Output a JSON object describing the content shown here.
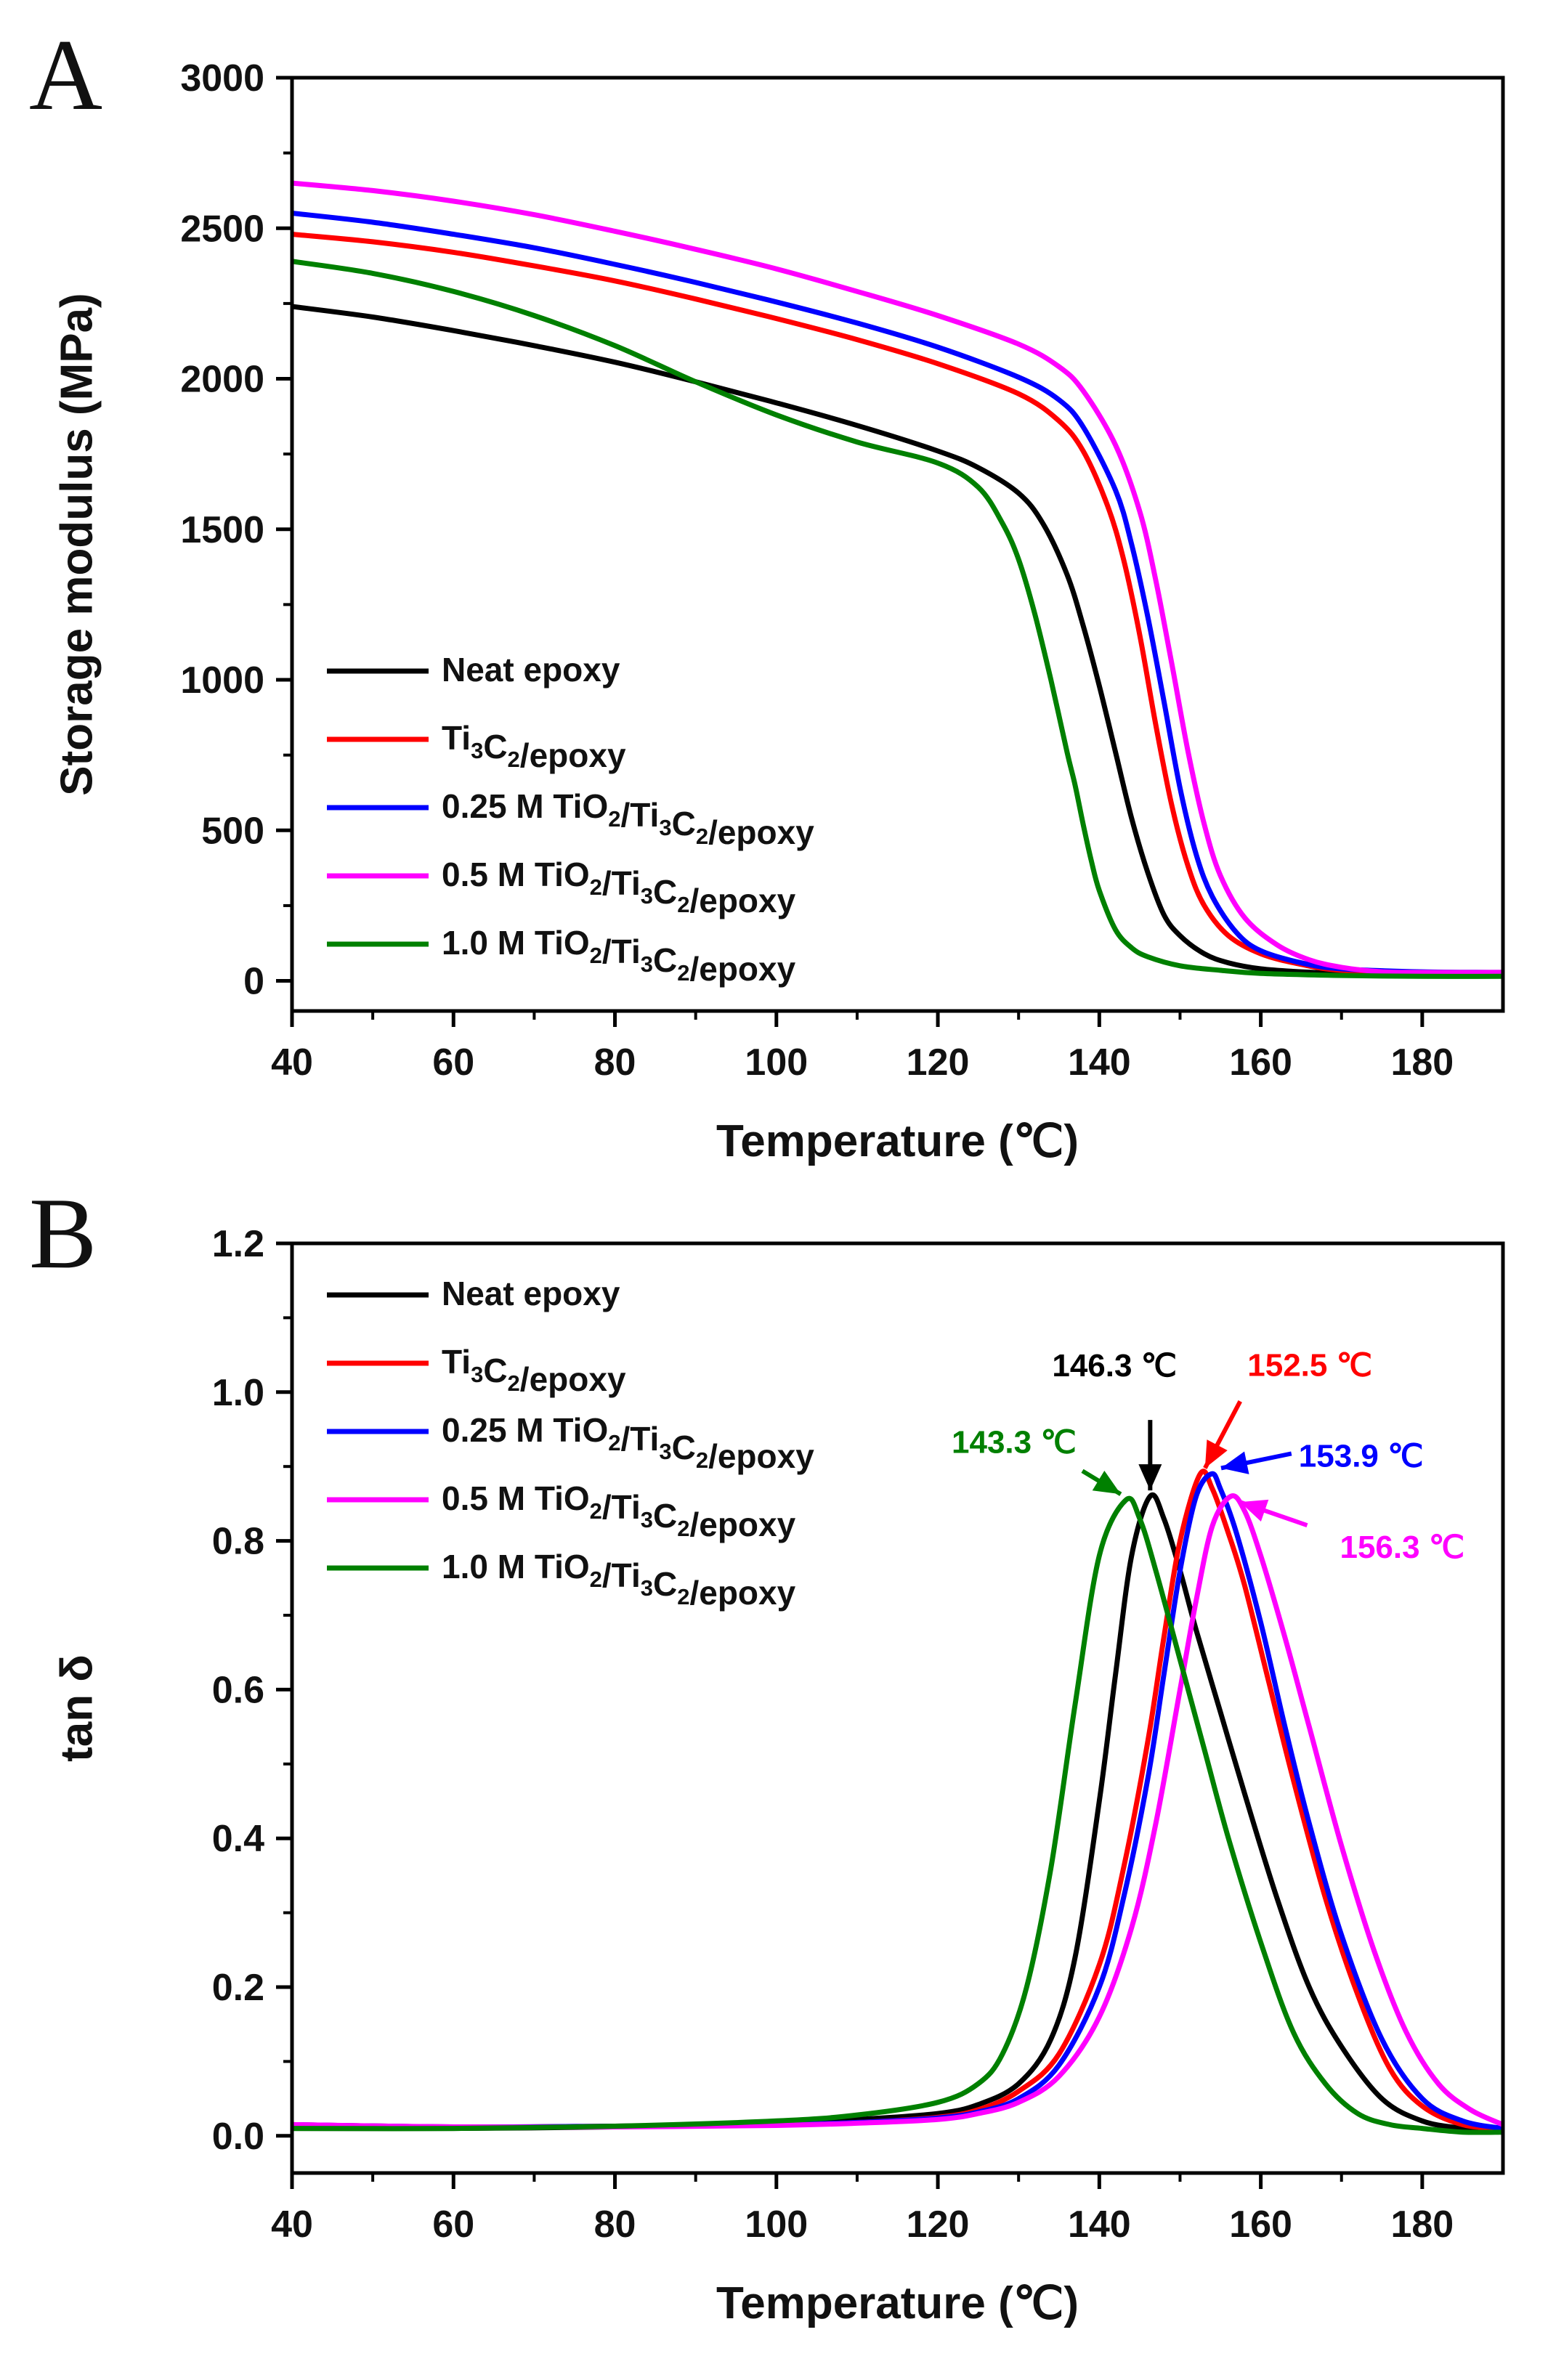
{
  "chart_data": [
    {
      "panel": "A",
      "type": "line",
      "xlabel": "Temperature (℃)",
      "ylabel": "Storage modulus (MPa)",
      "xlim": [
        40,
        190
      ],
      "ylim": [
        -100,
        3000
      ],
      "x_ticks": [
        40,
        60,
        80,
        100,
        120,
        140,
        160,
        180
      ],
      "y_ticks": [
        0,
        500,
        1000,
        1500,
        2000,
        2500,
        3000
      ],
      "legend": [
        {
          "name": "Neat epoxy",
          "color": "#000000"
        },
        {
          "name": "Ti3C2/epoxy",
          "color": "#ff0000"
        },
        {
          "name": "0.25 M TiO2/Ti3C2/epoxy",
          "color": "#0000ff"
        },
        {
          "name": "0.5 M TiO2/Ti3C2/epoxy",
          "color": "#ff00ff"
        },
        {
          "name": "1.0 M TiO2/Ti3C2/epoxy",
          "color": "#008000"
        }
      ],
      "series": [
        {
          "name": "Neat epoxy",
          "color": "#000000",
          "x": [
            40,
            50,
            60,
            70,
            80,
            90,
            100,
            110,
            120,
            125,
            130,
            133,
            136,
            138,
            140,
            142,
            144,
            146,
            148,
            150,
            153,
            156,
            160,
            165,
            170,
            180,
            190
          ],
          "y": [
            2240,
            2205,
            2160,
            2110,
            2055,
            1990,
            1920,
            1845,
            1760,
            1705,
            1620,
            1520,
            1350,
            1180,
            980,
            760,
            540,
            360,
            220,
            150,
            90,
            60,
            40,
            30,
            25,
            22,
            20
          ]
        },
        {
          "name": "Ti3C2/epoxy",
          "color": "#ff0000",
          "x": [
            40,
            50,
            60,
            70,
            80,
            90,
            100,
            110,
            120,
            130,
            135,
            138,
            141,
            143,
            145,
            147,
            149,
            151,
            153,
            156,
            160,
            165,
            170,
            180,
            190
          ],
          "y": [
            2480,
            2455,
            2420,
            2375,
            2325,
            2265,
            2200,
            2130,
            2050,
            1950,
            1860,
            1760,
            1580,
            1400,
            1150,
            850,
            580,
            380,
            250,
            150,
            90,
            55,
            35,
            25,
            22
          ]
        },
        {
          "name": "0.25 M TiO2/Ti3C2/epoxy",
          "color": "#0000ff",
          "x": [
            40,
            50,
            60,
            70,
            80,
            90,
            100,
            110,
            120,
            130,
            135,
            138,
            142,
            144,
            146,
            148,
            150,
            152,
            154,
            157,
            160,
            165,
            170,
            180,
            190
          ],
          "y": [
            2550,
            2520,
            2480,
            2435,
            2380,
            2320,
            2255,
            2185,
            2105,
            2005,
            1930,
            1840,
            1630,
            1450,
            1210,
            930,
            640,
            420,
            280,
            160,
            100,
            60,
            40,
            30,
            28
          ]
        },
        {
          "name": "0.5 M TiO2/Ti3C2/epoxy",
          "color": "#ff00ff",
          "x": [
            40,
            50,
            60,
            70,
            80,
            90,
            100,
            110,
            120,
            130,
            135,
            138,
            142,
            145,
            147,
            149,
            151,
            153,
            155,
            158,
            162,
            166,
            170,
            175,
            180,
            190
          ],
          "y": [
            2650,
            2625,
            2590,
            2545,
            2490,
            2430,
            2365,
            2290,
            2210,
            2115,
            2040,
            1960,
            1780,
            1560,
            1330,
            1050,
            760,
            520,
            350,
            210,
            120,
            70,
            45,
            30,
            28,
            28
          ]
        },
        {
          "name": "1.0 M TiO2/Ti3C2/epoxy",
          "color": "#008000",
          "x": [
            40,
            50,
            60,
            70,
            80,
            90,
            100,
            110,
            120,
            125,
            128,
            130,
            132,
            134,
            136,
            137,
            138,
            139,
            140,
            142,
            144,
            146,
            150,
            155,
            160,
            170,
            180,
            190
          ],
          "y": [
            2390,
            2350,
            2290,
            2210,
            2110,
            1990,
            1880,
            1790,
            1720,
            1640,
            1520,
            1400,
            1220,
            1000,
            760,
            650,
            520,
            400,
            300,
            170,
            110,
            80,
            50,
            35,
            25,
            18,
            15,
            15
          ]
        }
      ]
    },
    {
      "panel": "B",
      "type": "line",
      "xlabel": "Temperature (℃)",
      "ylabel": "tan δ",
      "xlim": [
        40,
        190
      ],
      "ylim": [
        -0.05,
        1.2
      ],
      "x_ticks": [
        40,
        60,
        80,
        100,
        120,
        140,
        160,
        180
      ],
      "y_ticks": [
        "0.0",
        "0.2",
        "0.4",
        "0.6",
        "0.8",
        "1.0",
        "1.2"
      ],
      "legend": [
        {
          "name": "Neat epoxy",
          "color": "#000000"
        },
        {
          "name": "Ti3C2/epoxy",
          "color": "#ff0000"
        },
        {
          "name": "0.25 M TiO2/Ti3C2/epoxy",
          "color": "#0000ff"
        },
        {
          "name": "0.5 M TiO2/Ti3C2/epoxy",
          "color": "#ff00ff"
        },
        {
          "name": "1.0 M TiO2/Ti3C2/epoxy",
          "color": "#008000"
        }
      ],
      "series": [
        {
          "name": "Neat epoxy",
          "color": "#000000",
          "x": [
            40,
            60,
            80,
            100,
            110,
            120,
            125,
            130,
            134,
            137,
            140,
            142,
            144,
            146.3,
            148,
            150,
            152,
            155,
            158,
            162,
            166,
            170,
            175,
            180,
            185,
            190
          ],
          "y": [
            0.01,
            0.01,
            0.012,
            0.017,
            0.022,
            0.03,
            0.042,
            0.07,
            0.13,
            0.24,
            0.45,
            0.62,
            0.78,
            0.86,
            0.83,
            0.76,
            0.68,
            0.57,
            0.46,
            0.32,
            0.2,
            0.12,
            0.05,
            0.02,
            0.01,
            0.005
          ]
        },
        {
          "name": "Ti3C2/epoxy",
          "color": "#ff0000",
          "x": [
            40,
            60,
            80,
            100,
            110,
            120,
            125,
            130,
            135,
            140,
            143,
            146,
            148,
            150,
            152.5,
            154,
            156,
            158,
            161,
            164,
            168,
            172,
            176,
            180,
            185,
            190
          ],
          "y": [
            0.015,
            0.012,
            0.013,
            0.015,
            0.018,
            0.025,
            0.035,
            0.06,
            0.11,
            0.23,
            0.36,
            0.53,
            0.67,
            0.8,
            0.89,
            0.87,
            0.81,
            0.74,
            0.61,
            0.48,
            0.32,
            0.19,
            0.09,
            0.04,
            0.015,
            0.01
          ]
        },
        {
          "name": "0.25 M TiO2/Ti3C2/epoxy",
          "color": "#0000ff",
          "x": [
            40,
            60,
            80,
            100,
            110,
            120,
            125,
            130,
            135,
            140,
            143,
            146,
            148,
            150,
            152,
            153.9,
            155,
            157,
            160,
            163,
            166,
            170,
            175,
            180,
            185,
            190
          ],
          "y": [
            0.015,
            0.012,
            0.013,
            0.015,
            0.018,
            0.024,
            0.032,
            0.05,
            0.095,
            0.2,
            0.32,
            0.48,
            0.62,
            0.76,
            0.86,
            0.89,
            0.87,
            0.81,
            0.69,
            0.55,
            0.42,
            0.27,
            0.13,
            0.05,
            0.02,
            0.01
          ]
        },
        {
          "name": "0.5 M TiO2/Ti3C2/epoxy",
          "color": "#ff00ff",
          "x": [
            40,
            60,
            80,
            100,
            110,
            120,
            125,
            130,
            135,
            140,
            144,
            147,
            150,
            152,
            154,
            156.3,
            158,
            160,
            163,
            166,
            170,
            174,
            178,
            182,
            186,
            190
          ],
          "y": [
            0.015,
            0.012,
            0.012,
            0.014,
            0.017,
            0.022,
            0.03,
            0.045,
            0.08,
            0.16,
            0.28,
            0.42,
            0.6,
            0.72,
            0.82,
            0.86,
            0.84,
            0.78,
            0.67,
            0.55,
            0.39,
            0.25,
            0.14,
            0.07,
            0.035,
            0.015
          ]
        },
        {
          "name": "1.0 M TiO2/Ti3C2/epoxy",
          "color": "#008000",
          "x": [
            40,
            60,
            80,
            100,
            110,
            120,
            125,
            128,
            131,
            134,
            137,
            140,
            143.3,
            145,
            147,
            150,
            153,
            156,
            160,
            164,
            168,
            172,
            176,
            180,
            185,
            190
          ],
          "y": [
            0.01,
            0.01,
            0.013,
            0.02,
            0.028,
            0.045,
            0.07,
            0.11,
            0.2,
            0.36,
            0.58,
            0.78,
            0.855,
            0.83,
            0.76,
            0.64,
            0.52,
            0.4,
            0.26,
            0.14,
            0.07,
            0.03,
            0.015,
            0.01,
            0.005,
            0.005
          ]
        }
      ],
      "annotations": [
        {
          "text": "146.3 ℃",
          "x": 146.3,
          "y": 0.86,
          "color": "#000000"
        },
        {
          "text": "152.5 ℃",
          "x": 152.5,
          "y": 0.89,
          "color": "#ff0000"
        },
        {
          "text": "153.9 ℃",
          "x": 153.9,
          "y": 0.89,
          "color": "#0000ff"
        },
        {
          "text": "156.3 ℃",
          "x": 156.3,
          "y": 0.86,
          "color": "#ff00ff"
        },
        {
          "text": "143.3 ℃",
          "x": 143.3,
          "y": 0.855,
          "color": "#008000"
        }
      ]
    }
  ],
  "panels": [
    {
      "letter": "A"
    },
    {
      "letter": "B"
    }
  ]
}
